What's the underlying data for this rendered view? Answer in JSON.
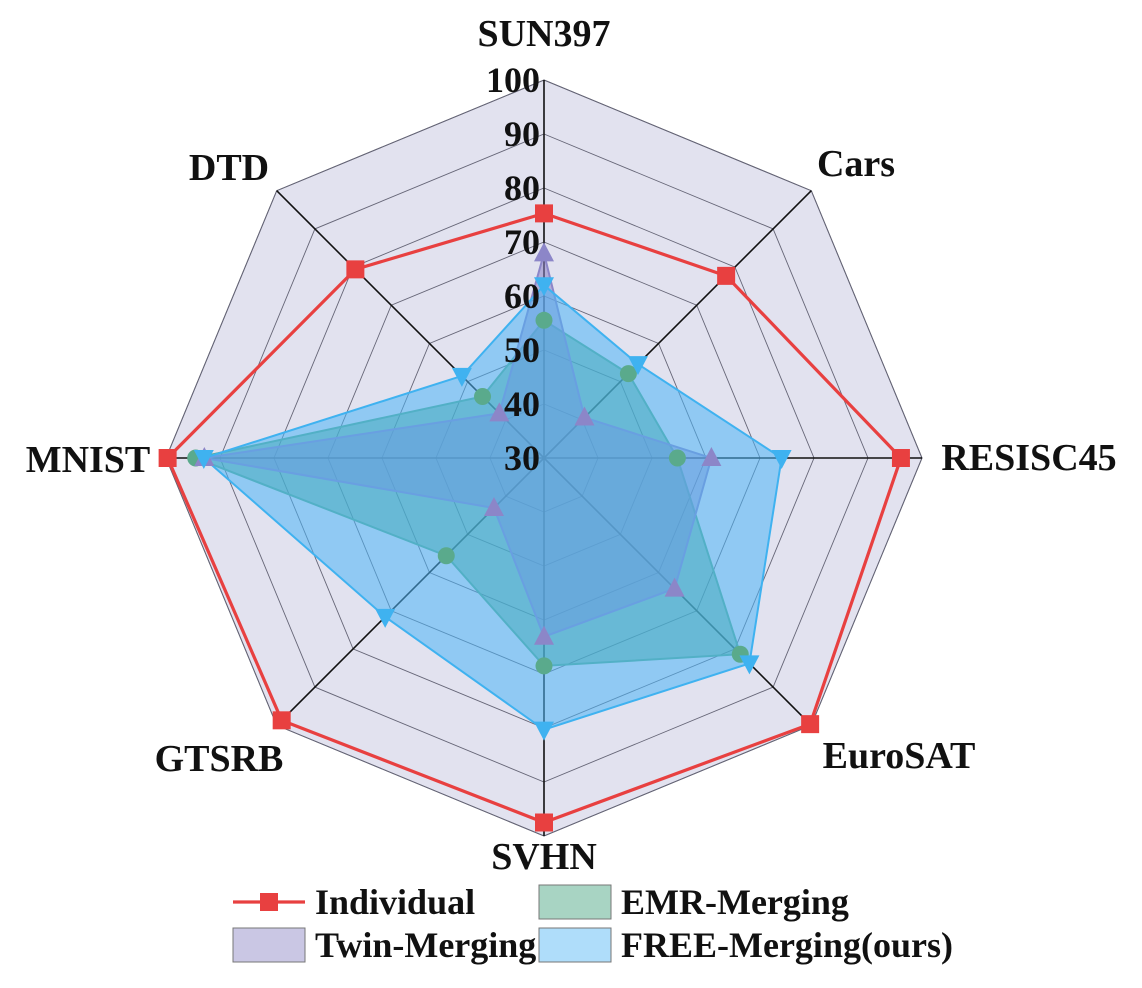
{
  "chart_data": {
    "type": "radar",
    "categories": [
      "SUN397",
      "Cars",
      "RESISC45",
      "EuroSAT",
      "SVHN",
      "GTSRB",
      "MNIST",
      "DTD"
    ],
    "rlim": [
      30,
      100
    ],
    "ticks": [
      "30",
      "40",
      "50",
      "60",
      "70",
      "80",
      "90",
      "100"
    ],
    "tick_values": [
      30,
      40,
      50,
      60,
      70,
      80,
      90,
      100
    ],
    "series": [
      {
        "name": "Individual",
        "values": [
          75.3,
          77.7,
          96.1,
          99.7,
          97.5,
          98.7,
          99.7,
          79.4
        ],
        "color": "#e84040",
        "style": "line",
        "marker": "square"
      },
      {
        "name": "EMR-Merging",
        "values": [
          55.5,
          52.1,
          54.7,
          81.4,
          68.5,
          55.6,
          94.5,
          46.1
        ],
        "color": "#5aaa8c",
        "fill": "#3fa07a",
        "style": "area",
        "marker": "circle"
      },
      {
        "name": "Twin-Merging",
        "values": [
          67.9,
          40.6,
          61.0,
          64.2,
          63.1,
          43.1,
          92.9,
          41.7
        ],
        "color": "#8c86c8",
        "fill": "#8a82c4",
        "style": "area",
        "marker": "triangle-up"
      },
      {
        "name": "FREE-Merging(ours)",
        "values": [
          62.0,
          54.6,
          74.0,
          83.8,
          80.3,
          71.6,
          93.0,
          51.5
        ],
        "color": "#3fb2f0",
        "fill": "#4db4f5",
        "style": "area",
        "marker": "triangle-down"
      }
    ],
    "grid": true,
    "background": "#e2e2ef",
    "legend_position": "bottom"
  }
}
